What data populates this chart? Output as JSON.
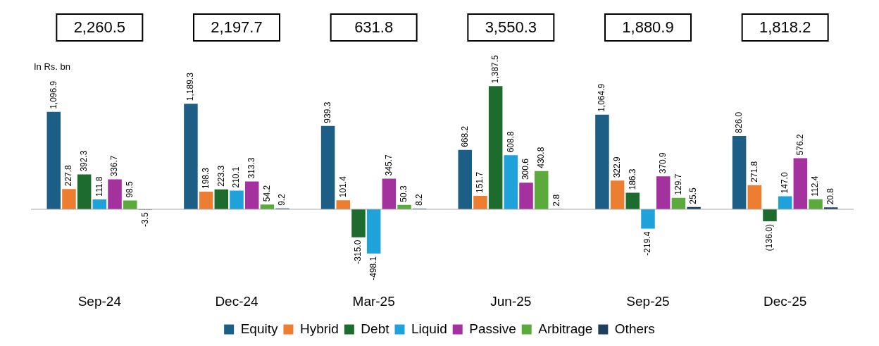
{
  "chart_data": {
    "type": "bar",
    "ylabel": "In Rs. bn",
    "categories": [
      "Sep-24",
      "Dec-24",
      "Mar-25",
      "Jun-25",
      "Sep-25",
      "Dec-25"
    ],
    "series": [
      {
        "name": "Equity",
        "color": "#1d5e86",
        "values": [
          1096.9,
          1189.3,
          939.3,
          668.2,
          1064.9,
          826.0
        ],
        "value_labels": [
          "1,096.9",
          "1,189.3",
          "939.3",
          "668.2",
          "1,064.9",
          "826.0"
        ]
      },
      {
        "name": "Hybrid",
        "color": "#ed7d31",
        "values": [
          227.8,
          198.3,
          101.4,
          151.7,
          322.9,
          271.8
        ],
        "value_labels": [
          "227.8",
          "198.3",
          "101.4",
          "151.7",
          "322.9",
          "271.8"
        ]
      },
      {
        "name": "Debt",
        "color": "#1e6b2e",
        "values": [
          392.3,
          223.3,
          -315.0,
          1387.5,
          186.3,
          -136.0
        ],
        "value_labels": [
          "392.3",
          "223.3",
          "-315.0",
          "1,387.5",
          "186.3",
          "(136.0)"
        ]
      },
      {
        "name": "Liquid",
        "color": "#1fa2d9",
        "values": [
          111.8,
          210.1,
          -498.1,
          608.8,
          -219.4,
          147.0
        ],
        "value_labels": [
          "111.8",
          "210.1",
          "-498.1",
          "608.8",
          "-219.4",
          "147.0"
        ]
      },
      {
        "name": "Passive",
        "color": "#a3319e",
        "values": [
          336.7,
          313.3,
          345.7,
          300.6,
          370.9,
          576.2
        ],
        "value_labels": [
          "336.7",
          "313.3",
          "345.7",
          "300.6",
          "370.9",
          "576.2"
        ]
      },
      {
        "name": "Arbitrage",
        "color": "#5aab3b",
        "values": [
          98.5,
          54.2,
          50.3,
          430.8,
          129.7,
          112.4
        ],
        "value_labels": [
          "98.5",
          "54.2",
          "50.3",
          "430.8",
          "129.7",
          "112.4"
        ]
      },
      {
        "name": "Others",
        "color": "#1f3f5f",
        "values": [
          -3.5,
          9.2,
          8.2,
          2.8,
          25.5,
          20.8
        ],
        "value_labels": [
          "-3.5",
          "9.2",
          "8.2",
          "2.8",
          "25.5",
          "20.8"
        ]
      }
    ],
    "annotations": [
      "2,260.5",
      "2,197.7",
      "631.8",
      "3,550.3",
      "1,880.9",
      "1,818.2"
    ],
    "legend": "bottom",
    "grid": false
  }
}
